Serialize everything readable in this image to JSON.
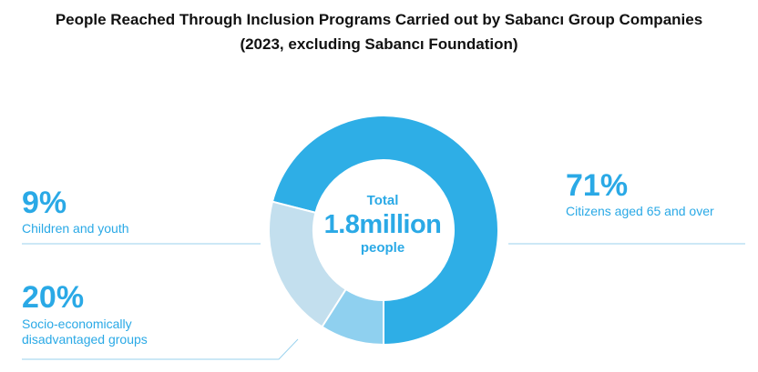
{
  "chart_data": {
    "type": "pie",
    "title": "People Reached Through Inclusion Programs Carried out by Sabancı Group Companies",
    "subtitle": "(2023, excluding Sabancı Foundation)",
    "center": {
      "label_top": "Total",
      "value": "1.8million",
      "label_bottom": "people"
    },
    "slices": [
      {
        "label": "Citizens aged 65 and over",
        "value": 71,
        "display": "71%",
        "color": "#2eaee6"
      },
      {
        "label": "Socio-economically disadvantaged groups",
        "label_lines": [
          "Socio-economically",
          "disadvantaged groups"
        ],
        "value": 20,
        "display": "20%",
        "color": "#c3dfee"
      },
      {
        "label": "Children and youth",
        "value": 9,
        "display": "9%",
        "color": "#8fd0ef"
      }
    ]
  }
}
